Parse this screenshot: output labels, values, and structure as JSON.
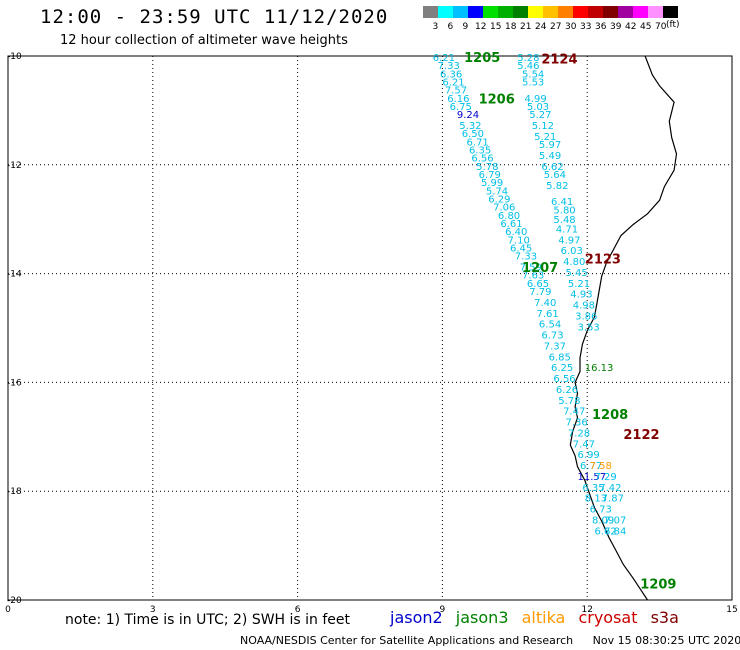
{
  "title": "12:00 - 23:59 UTC 11/12/2020",
  "subtitle": "12 hour collection of altimeter wave heights",
  "color_scale": {
    "unit": "(ft)",
    "colors": [
      "#808080",
      "#00ffff",
      "#00c0ff",
      "#0000ff",
      "#00e000",
      "#00b000",
      "#008000",
      "#ffff00",
      "#ffc000",
      "#ff8000",
      "#ff0000",
      "#c00000",
      "#800000",
      "#a000a0",
      "#ff00ff",
      "#ff90ff",
      "#000000"
    ],
    "ticks": [
      "3",
      "6",
      "9",
      "12",
      "15",
      "18",
      "21",
      "24",
      "27",
      "30",
      "33",
      "36",
      "39",
      "42",
      "45",
      "70"
    ]
  },
  "axes": {
    "lon_range": [
      0,
      15
    ],
    "lat_range": [
      -20,
      -10
    ],
    "x_ticks": [
      0,
      3,
      6,
      9,
      12,
      15
    ],
    "y_ticks": [
      -10,
      -12,
      -14,
      -16,
      -18,
      -20
    ]
  },
  "satellite_colors": {
    "jason2": "#0000cc",
    "jason3": "#008000",
    "altika": "#ff9900",
    "cryosat": "#cc0000",
    "s3a": "#800000",
    "label": "#00bfe6"
  },
  "pass_labels": [
    {
      "text": "1205",
      "lon": 9.45,
      "lat": -10.02,
      "sat": "jason3"
    },
    {
      "text": "2124",
      "lon": 11.05,
      "lat": -10.05,
      "sat": "s3a"
    },
    {
      "text": "1206",
      "lon": 9.75,
      "lat": -10.78,
      "sat": "jason3"
    },
    {
      "text": "2123",
      "lon": 11.95,
      "lat": -13.72,
      "sat": "s3a"
    },
    {
      "text": "1207",
      "lon": 10.65,
      "lat": -13.88,
      "sat": "jason3"
    },
    {
      "text": "1208",
      "lon": 12.1,
      "lat": -16.58,
      "sat": "jason3"
    },
    {
      "text": "2122",
      "lon": 12.75,
      "lat": -16.95,
      "sat": "s3a"
    },
    {
      "text": "1209",
      "lon": 13.1,
      "lat": -19.7,
      "sat": "jason3"
    }
  ],
  "track_values": [
    {
      "text": "6.21",
      "lon": 8.8,
      "lat": -10.02,
      "sat": "label"
    },
    {
      "text": "5.28",
      "lon": 10.55,
      "lat": -10.02,
      "sat": "label"
    },
    {
      "text": "7.33",
      "lon": 8.9,
      "lat": -10.17,
      "sat": "label"
    },
    {
      "text": "5.46",
      "lon": 10.55,
      "lat": -10.17,
      "sat": "label"
    },
    {
      "text": "6.36",
      "lon": 8.95,
      "lat": -10.32,
      "sat": "label"
    },
    {
      "text": "5.54",
      "lon": 10.65,
      "lat": -10.32,
      "sat": "label"
    },
    {
      "text": "6.21",
      "lon": 9.0,
      "lat": -10.47,
      "sat": "label"
    },
    {
      "text": "5.53",
      "lon": 10.65,
      "lat": -10.47,
      "sat": "label"
    },
    {
      "text": "7.57",
      "lon": 9.05,
      "lat": -10.62,
      "sat": "label"
    },
    {
      "text": "4.99",
      "lon": 10.7,
      "lat": -10.77,
      "sat": "label"
    },
    {
      "text": "6.16",
      "lon": 9.1,
      "lat": -10.77,
      "sat": "label"
    },
    {
      "text": "6.75",
      "lon": 9.15,
      "lat": -10.92,
      "sat": "label"
    },
    {
      "text": "5.03",
      "lon": 10.75,
      "lat": -10.92,
      "sat": "label"
    },
    {
      "text": "9.24",
      "lon": 9.3,
      "lat": -11.07,
      "sat": "jason2"
    },
    {
      "text": "5.27",
      "lon": 10.8,
      "lat": -11.07,
      "sat": "label"
    },
    {
      "text": "5.32",
      "lon": 9.35,
      "lat": -11.27,
      "sat": "label"
    },
    {
      "text": "5.12",
      "lon": 10.85,
      "lat": -11.27,
      "sat": "label"
    },
    {
      "text": "6.50",
      "lon": 9.4,
      "lat": -11.42,
      "sat": "label"
    },
    {
      "text": "5.21",
      "lon": 10.9,
      "lat": -11.47,
      "sat": "label"
    },
    {
      "text": "6.71",
      "lon": 9.5,
      "lat": -11.57,
      "sat": "label"
    },
    {
      "text": "5.97",
      "lon": 11.0,
      "lat": -11.62,
      "sat": "label"
    },
    {
      "text": "6.35",
      "lon": 9.55,
      "lat": -11.72,
      "sat": "label"
    },
    {
      "text": "5.49",
      "lon": 11.0,
      "lat": -11.82,
      "sat": "label"
    },
    {
      "text": "6.56",
      "lon": 9.6,
      "lat": -11.87,
      "sat": "label"
    },
    {
      "text": "6.62",
      "lon": 11.05,
      "lat": -12.02,
      "sat": "label"
    },
    {
      "text": "5.78",
      "lon": 9.7,
      "lat": -12.02,
      "sat": "label"
    },
    {
      "text": "6.79",
      "lon": 9.75,
      "lat": -12.17,
      "sat": "label"
    },
    {
      "text": "5.64",
      "lon": 11.1,
      "lat": -12.17,
      "sat": "label"
    },
    {
      "text": "5.99",
      "lon": 9.8,
      "lat": -12.32,
      "sat": "label"
    },
    {
      "text": "5.82",
      "lon": 11.15,
      "lat": -12.37,
      "sat": "label"
    },
    {
      "text": "5.74",
      "lon": 9.9,
      "lat": -12.47,
      "sat": "label"
    },
    {
      "text": "6.29",
      "lon": 9.95,
      "lat": -12.62,
      "sat": "label"
    },
    {
      "text": "6.41",
      "lon": 11.25,
      "lat": -12.67,
      "sat": "label"
    },
    {
      "text": "7.06",
      "lon": 10.05,
      "lat": -12.77,
      "sat": "label"
    },
    {
      "text": "5.80",
      "lon": 11.3,
      "lat": -12.82,
      "sat": "label"
    },
    {
      "text": "6.80",
      "lon": 10.15,
      "lat": -12.92,
      "sat": "label"
    },
    {
      "text": "5.48",
      "lon": 11.3,
      "lat": -13.0,
      "sat": "label"
    },
    {
      "text": "6.61",
      "lon": 10.2,
      "lat": -13.07,
      "sat": "label"
    },
    {
      "text": "4.71",
      "lon": 11.35,
      "lat": -13.17,
      "sat": "label"
    },
    {
      "text": "6.40",
      "lon": 10.3,
      "lat": -13.22,
      "sat": "label"
    },
    {
      "text": "4.97",
      "lon": 11.4,
      "lat": -13.37,
      "sat": "label"
    },
    {
      "text": "7.10",
      "lon": 10.35,
      "lat": -13.37,
      "sat": "label"
    },
    {
      "text": "6.45",
      "lon": 10.4,
      "lat": -13.52,
      "sat": "label"
    },
    {
      "text": "6.03",
      "lon": 11.45,
      "lat": -13.57,
      "sat": "label"
    },
    {
      "text": "7.33",
      "lon": 10.5,
      "lat": -13.67,
      "sat": "label"
    },
    {
      "text": "4.80",
      "lon": 11.5,
      "lat": -13.77,
      "sat": "label"
    },
    {
      "text": "7.59",
      "lon": 10.6,
      "lat": -13.87,
      "sat": "label"
    },
    {
      "text": "5.45",
      "lon": 11.55,
      "lat": -13.97,
      "sat": "label"
    },
    {
      "text": "7.63",
      "lon": 10.65,
      "lat": -14.02,
      "sat": "label"
    },
    {
      "text": "6.65",
      "lon": 10.75,
      "lat": -14.17,
      "sat": "label"
    },
    {
      "text": "5.21",
      "lon": 11.6,
      "lat": -14.17,
      "sat": "label"
    },
    {
      "text": "7.79",
      "lon": 10.8,
      "lat": -14.32,
      "sat": "label"
    },
    {
      "text": "4.93",
      "lon": 11.65,
      "lat": -14.37,
      "sat": "label"
    },
    {
      "text": "7.40",
      "lon": 10.9,
      "lat": -14.52,
      "sat": "label"
    },
    {
      "text": "4.98",
      "lon": 11.7,
      "lat": -14.57,
      "sat": "label"
    },
    {
      "text": "7.61",
      "lon": 10.95,
      "lat": -14.72,
      "sat": "label"
    },
    {
      "text": "3.86",
      "lon": 11.75,
      "lat": -14.77,
      "sat": "label"
    },
    {
      "text": "6.54",
      "lon": 11.0,
      "lat": -14.92,
      "sat": "label"
    },
    {
      "text": "3.53",
      "lon": 11.8,
      "lat": -14.97,
      "sat": "label"
    },
    {
      "text": "6.73",
      "lon": 11.05,
      "lat": -15.12,
      "sat": "label"
    },
    {
      "text": "7.37",
      "lon": 11.1,
      "lat": -15.32,
      "sat": "label"
    },
    {
      "text": "6.85",
      "lon": 11.2,
      "lat": -15.52,
      "sat": "label"
    },
    {
      "text": "16.13",
      "lon": 11.95,
      "lat": -15.72,
      "sat": "jason3"
    },
    {
      "text": "6.25",
      "lon": 11.25,
      "lat": -15.72,
      "sat": "label"
    },
    {
      "text": "6.56",
      "lon": 11.3,
      "lat": -15.92,
      "sat": "label"
    },
    {
      "text": "6.26",
      "lon": 11.35,
      "lat": -16.12,
      "sat": "label"
    },
    {
      "text": "5.78",
      "lon": 11.4,
      "lat": -16.32,
      "sat": "label"
    },
    {
      "text": "7.47",
      "lon": 11.5,
      "lat": -16.52,
      "sat": "label"
    },
    {
      "text": "7.36",
      "lon": 11.55,
      "lat": -16.72,
      "sat": "label"
    },
    {
      "text": "7.28",
      "lon": 11.6,
      "lat": -16.92,
      "sat": "label"
    },
    {
      "text": "7.47",
      "lon": 11.7,
      "lat": -17.12,
      "sat": "label"
    },
    {
      "text": "6.99",
      "lon": 11.8,
      "lat": -17.32,
      "sat": "label"
    },
    {
      "text": "6.77",
      "lon": 11.85,
      "lat": -17.52,
      "sat": "label"
    },
    {
      "text": "7.58",
      "lon": 12.05,
      "lat": -17.52,
      "sat": "altika"
    },
    {
      "text": "11.57",
      "lon": 11.8,
      "lat": -17.72,
      "sat": "jason2"
    },
    {
      "text": "7.29",
      "lon": 12.15,
      "lat": -17.72,
      "sat": "label"
    },
    {
      "text": "6.35",
      "lon": 11.9,
      "lat": -17.92,
      "sat": "label"
    },
    {
      "text": "7.42",
      "lon": 12.25,
      "lat": -17.92,
      "sat": "label"
    },
    {
      "text": "8.13",
      "lon": 11.95,
      "lat": -18.12,
      "sat": "label"
    },
    {
      "text": "7.87",
      "lon": 12.3,
      "lat": -18.12,
      "sat": "label"
    },
    {
      "text": "6.73",
      "lon": 12.05,
      "lat": -18.32,
      "sat": "label"
    },
    {
      "text": "7.07",
      "lon": 12.35,
      "lat": -18.52,
      "sat": "label"
    },
    {
      "text": "8.09",
      "lon": 12.1,
      "lat": -18.52,
      "sat": "label"
    },
    {
      "text": "6.62",
      "lon": 12.15,
      "lat": -18.72,
      "sat": "label"
    },
    {
      "text": "7.84",
      "lon": 12.35,
      "lat": -18.72,
      "sat": "label"
    }
  ],
  "coastline": [
    [
      13.2,
      -10.0
    ],
    [
      13.35,
      -10.35
    ],
    [
      13.5,
      -10.55
    ],
    [
      13.8,
      -10.85
    ],
    [
      13.7,
      -11.2
    ],
    [
      13.75,
      -11.5
    ],
    [
      13.85,
      -11.8
    ],
    [
      13.8,
      -12.1
    ],
    [
      13.6,
      -12.4
    ],
    [
      13.5,
      -12.65
    ],
    [
      13.25,
      -12.9
    ],
    [
      12.95,
      -13.1
    ],
    [
      12.7,
      -13.3
    ],
    [
      12.55,
      -13.55
    ],
    [
      12.4,
      -13.8
    ],
    [
      12.3,
      -14.05
    ],
    [
      12.25,
      -14.3
    ],
    [
      12.2,
      -14.55
    ],
    [
      12.15,
      -14.8
    ],
    [
      12.0,
      -15.05
    ],
    [
      11.9,
      -15.3
    ],
    [
      11.85,
      -15.55
    ],
    [
      11.85,
      -15.8
    ],
    [
      11.75,
      -16.0
    ],
    [
      11.8,
      -16.2
    ],
    [
      11.75,
      -16.45
    ],
    [
      11.8,
      -16.65
    ],
    [
      11.7,
      -16.9
    ],
    [
      11.65,
      -17.15
    ],
    [
      11.75,
      -17.35
    ],
    [
      11.8,
      -17.55
    ],
    [
      11.95,
      -17.8
    ],
    [
      12.05,
      -18.05
    ],
    [
      12.15,
      -18.3
    ],
    [
      12.3,
      -18.55
    ],
    [
      12.45,
      -18.85
    ],
    [
      12.6,
      -19.1
    ],
    [
      12.75,
      -19.35
    ],
    [
      12.95,
      -19.6
    ],
    [
      13.1,
      -19.8
    ],
    [
      13.25,
      -20.0
    ]
  ],
  "note": "note:  1) Time is in UTC;  2) SWH is in feet",
  "legend": [
    "jason2",
    "jason3",
    "altika",
    "cryosat",
    "s3a"
  ],
  "footer": {
    "credit": "NOAA/NESDIS Center for Satellite Applications and Research",
    "timestamp": "Nov 15 08:30:25 UTC 2020"
  }
}
